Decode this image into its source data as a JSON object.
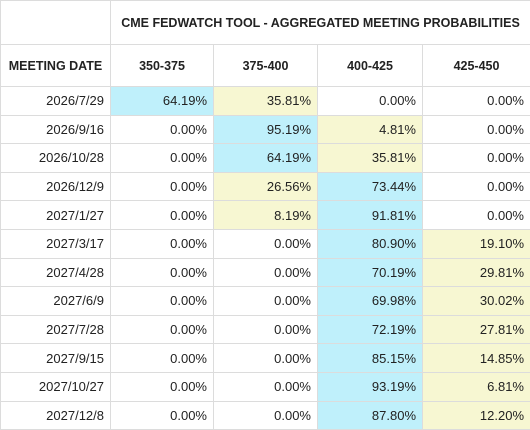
{
  "table": {
    "title": "CME FEDWATCH TOOL - AGGREGATED MEETING PROBABILITIES",
    "columns": [
      "MEETING DATE",
      "350-375",
      "375-400",
      "400-425",
      "425-450"
    ],
    "rows": [
      [
        "2026/7/29",
        "64.19%",
        "35.81%",
        "0.00%",
        "0.00%"
      ],
      [
        "2026/9/16",
        "0.00%",
        "95.19%",
        "4.81%",
        "0.00%"
      ],
      [
        "2026/10/28",
        "0.00%",
        "64.19%",
        "35.81%",
        "0.00%"
      ],
      [
        "2026/12/9",
        "0.00%",
        "26.56%",
        "73.44%",
        "0.00%"
      ],
      [
        "2027/1/27",
        "0.00%",
        "8.19%",
        "91.81%",
        "0.00%"
      ],
      [
        "2027/3/17",
        "0.00%",
        "0.00%",
        "80.90%",
        "19.10%"
      ],
      [
        "2027/4/28",
        "0.00%",
        "0.00%",
        "70.19%",
        "29.81%"
      ],
      [
        "2027/6/9",
        "0.00%",
        "0.00%",
        "69.98%",
        "30.02%"
      ],
      [
        "2027/7/28",
        "0.00%",
        "0.00%",
        "72.19%",
        "27.81%"
      ],
      [
        "2027/9/15",
        "0.00%",
        "0.00%",
        "85.15%",
        "14.85%"
      ],
      [
        "2027/10/27",
        "0.00%",
        "0.00%",
        "93.19%",
        "6.81%"
      ],
      [
        "2027/12/8",
        "0.00%",
        "0.00%",
        "87.80%",
        "12.20%"
      ]
    ],
    "first_color": "#bff0fb",
    "second_color": "#f7f7d2"
  }
}
